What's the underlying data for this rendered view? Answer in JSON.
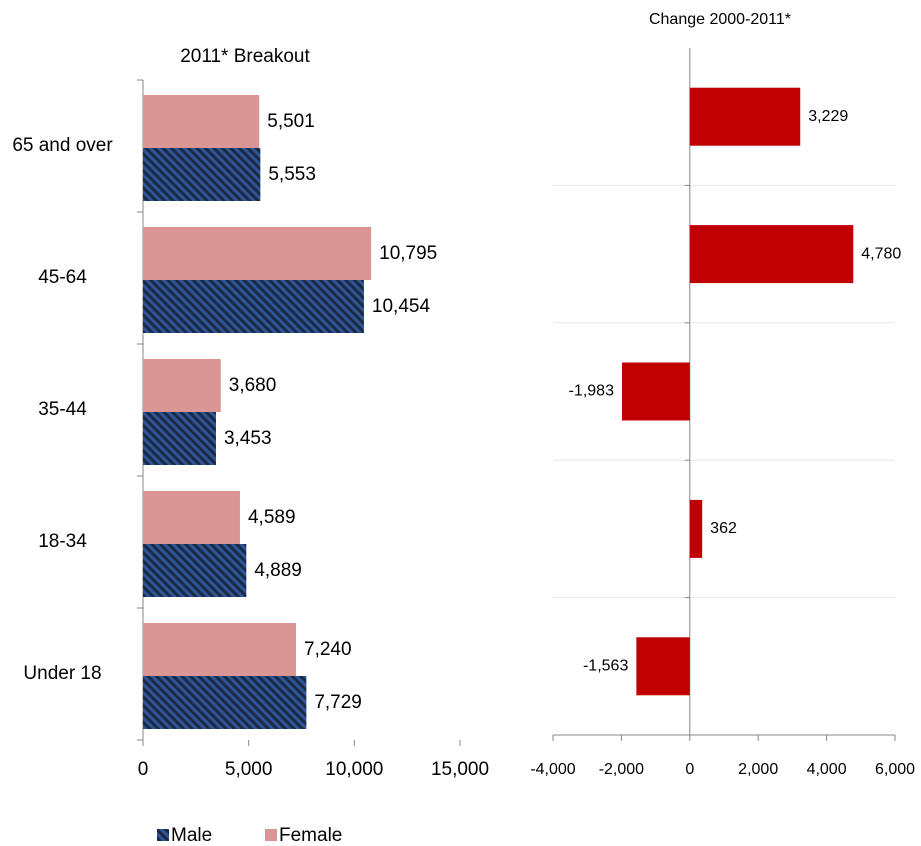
{
  "chart_data": [
    {
      "type": "bar",
      "orientation": "horizontal",
      "title": "2011* Breakout",
      "categories": [
        "65 and over",
        "45-64",
        "35-44",
        "18-34",
        "Under 18"
      ],
      "series": [
        {
          "name": "Male",
          "color": "#2e5597",
          "hatch": true,
          "values": [
            5553,
            10454,
            3453,
            4889,
            7729
          ],
          "value_labels": [
            "5,553",
            "10,454",
            "3,453",
            "4,889",
            "7,729"
          ]
        },
        {
          "name": "Female",
          "color": "#d99694",
          "values": [
            5501,
            10795,
            3680,
            4589,
            7240
          ],
          "value_labels": [
            "5,501",
            "10,795",
            "3,680",
            "4,589",
            "7,240"
          ]
        }
      ],
      "xlim": [
        0,
        15000
      ],
      "xticks": [
        0,
        {
          "value": 5000,
          "label": "5,000"
        },
        {
          "value": 10000,
          "label": "10,000"
        },
        {
          "value": 15000,
          "label": "15,000"
        }
      ],
      "legend": "bottom"
    },
    {
      "type": "bar",
      "orientation": "horizontal",
      "title": "Change 2000-2011*",
      "values": [
        3229,
        4780,
        -1983,
        362,
        -1563
      ],
      "value_labels": [
        "3,229",
        "4,780",
        "-1,983",
        "362",
        "-1,563"
      ],
      "color": "#c00000",
      "xlim": [
        -4000,
        6000
      ],
      "xticks": [
        {
          "value": -4000,
          "label": "-4,000"
        },
        {
          "value": -2000,
          "label": "-2,000"
        },
        0,
        {
          "value": 2000,
          "label": "2,000"
        },
        {
          "value": 4000,
          "label": "4,000"
        },
        {
          "value": 6000,
          "label": "6,000"
        }
      ]
    }
  ]
}
